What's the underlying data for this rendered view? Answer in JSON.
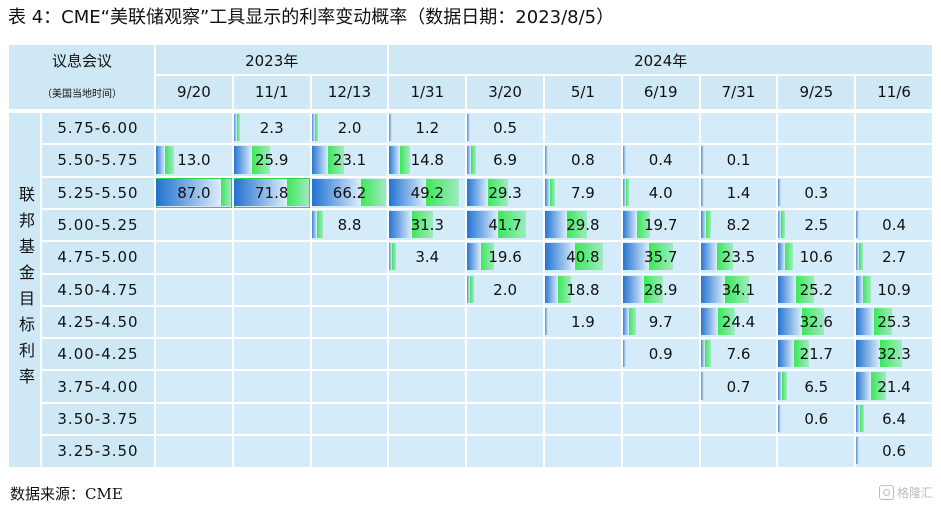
{
  "chart_data": {
    "type": "heatmap",
    "title": "表 4：CME“美联储观察”工具显示的利率变动概率（数据日期：2023/8/5）",
    "header_top_left": "议息会议",
    "header_sub_left": "（美国当地时间）",
    "row_axis_label": "联邦基金目标利率",
    "source": "数据来源：CME",
    "watermark": "格隆汇",
    "years": [
      {
        "label": "2023年",
        "span": 3
      },
      {
        "label": "2024年",
        "span": 7
      }
    ],
    "dates": [
      "9/20",
      "11/1",
      "12/13",
      "1/31",
      "3/20",
      "5/1",
      "6/19",
      "7/31",
      "9/25",
      "11/6"
    ],
    "rows": [
      "5.75-6.00",
      "5.50-5.75",
      "5.25-5.50",
      "5.00-5.25",
      "4.75-5.00",
      "4.50-4.75",
      "4.25-4.50",
      "4.00-4.25",
      "3.75-4.00",
      "3.50-3.75",
      "3.25-3.50"
    ],
    "values": [
      [
        null,
        "2.3",
        "2.0",
        "1.2",
        "0.5",
        null,
        null,
        null,
        null,
        null
      ],
      [
        "13.0",
        "25.9",
        "23.1",
        "14.8",
        "6.9",
        "0.8",
        "0.4",
        "0.1",
        null,
        null
      ],
      [
        "87.0",
        "71.8",
        "66.2",
        "49.2",
        "29.3",
        "7.9",
        "4.0",
        "1.4",
        "0.3",
        null
      ],
      [
        null,
        null,
        "8.8",
        "31.3",
        "41.7",
        "29.8",
        "19.7",
        "8.2",
        "2.5",
        "0.4"
      ],
      [
        null,
        null,
        null,
        "3.4",
        "19.6",
        "40.8",
        "35.7",
        "23.5",
        "10.6",
        "2.7"
      ],
      [
        null,
        null,
        null,
        null,
        "2.0",
        "18.8",
        "28.9",
        "34.1",
        "25.2",
        "10.9"
      ],
      [
        null,
        null,
        null,
        null,
        null,
        "1.9",
        "9.7",
        "24.4",
        "32.6",
        "25.3"
      ],
      [
        null,
        null,
        null,
        null,
        null,
        null,
        "0.9",
        "7.6",
        "21.7",
        "32.3"
      ],
      [
        null,
        null,
        null,
        null,
        null,
        null,
        null,
        "0.7",
        "6.5",
        "21.4"
      ],
      [
        null,
        null,
        null,
        null,
        null,
        null,
        null,
        null,
        "0.6",
        "6.4"
      ],
      [
        null,
        null,
        null,
        null,
        null,
        null,
        null,
        null,
        null,
        "0.6"
      ]
    ],
    "colors": {
      "header_bg": "#cfe8f6",
      "cell_bg": "#d4ecfa",
      "bar_blue": "#1e6fd0",
      "bar_light": "#ddeefa",
      "green": "#3ce858",
      "border": "#ffffff",
      "text": "#111111"
    }
  }
}
